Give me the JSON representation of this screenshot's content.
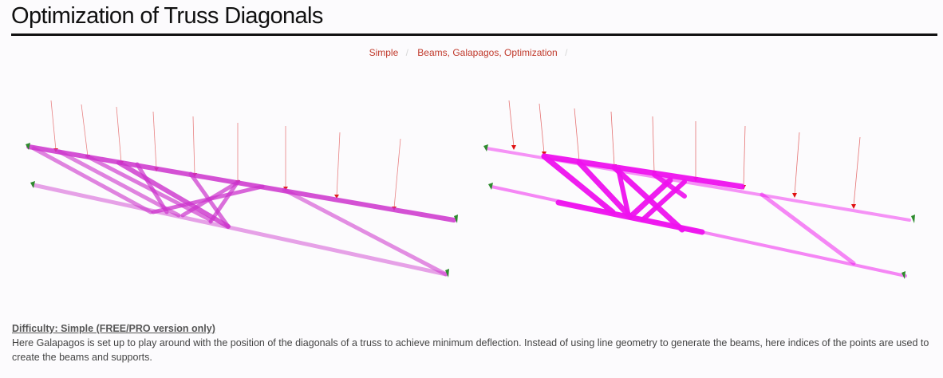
{
  "page": {
    "title": "Optimization of Truss Diagonals"
  },
  "breadcrumbs": {
    "category": "Simple",
    "tags": "Beams, Galapagos, Optimization",
    "separator": "/"
  },
  "figures": {
    "left": {
      "icon": "truss-before-optimization-image",
      "truss_color": "#cc33cc",
      "load_color": "#e05050",
      "support_color": "#2e8b2e"
    },
    "right": {
      "icon": "truss-after-optimization-image",
      "truss_color": "#ee11ee",
      "load_color": "#e02020",
      "support_color": "#2e8b2e"
    }
  },
  "description": {
    "difficulty": "Difficulty: Simple (FREE/PRO version only)",
    "text": "Here Galapagos is set up to play around with the position of the diagonals of a truss to achieve minimum deflection. Instead of using line geometry to generate the beams, here indices of the points are used to create the beams and supports."
  }
}
